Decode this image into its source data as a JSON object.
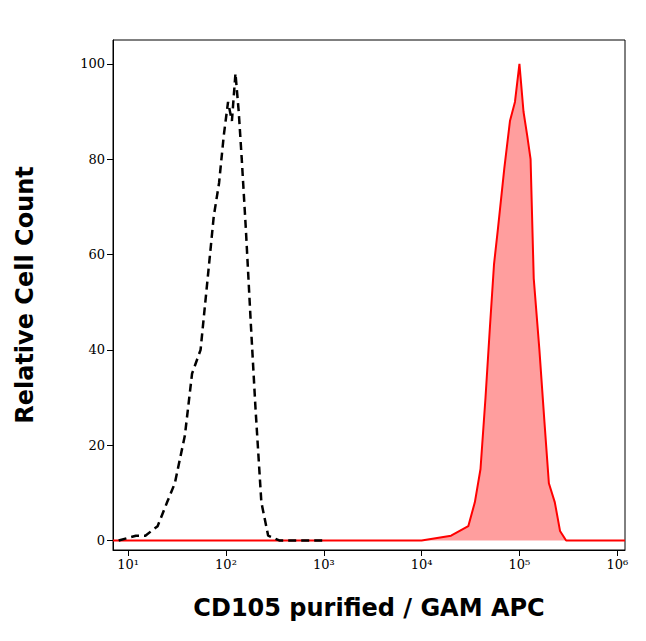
{
  "chart_data": {
    "type": "line",
    "x_label": "CD105 purified / GAM APC",
    "y_label": "Relative Cell Count",
    "log": "x",
    "grid": false,
    "xlim": [
      7,
      1200000
    ],
    "xticks": [
      {
        "value": 10,
        "label": "10¹"
      },
      {
        "value": 100,
        "label": "10²"
      },
      {
        "value": 1000,
        "label": "10³"
      },
      {
        "value": 10000,
        "label": "10⁴"
      },
      {
        "value": 100000,
        "label": "10⁵"
      },
      {
        "value": 1000000,
        "label": "10⁶"
      }
    ],
    "ylim": [
      -2,
      105
    ],
    "yticks": [
      0,
      20,
      40,
      60,
      80,
      100
    ],
    "series": [
      {
        "type": "line",
        "color": "#000000",
        "line_style": "dashed",
        "x": [
          8,
          12,
          15,
          20,
          25,
          30,
          38,
          45,
          55,
          65,
          75,
          85,
          95,
          105,
          115,
          125,
          135,
          145,
          160,
          180,
          200,
          230,
          270,
          350,
          500,
          1000
        ],
        "values": [
          0,
          1,
          1,
          3,
          8,
          12,
          22,
          35,
          40,
          55,
          68,
          75,
          85,
          92,
          88,
          98,
          90,
          80,
          65,
          45,
          28,
          8,
          1,
          0,
          0,
          0
        ]
      },
      {
        "type": "area",
        "color": "#ff0000",
        "line_style": "solid",
        "x": [
          7,
          1000,
          10000,
          20000,
          30000,
          35000,
          40000,
          45000,
          50000,
          55000,
          60000,
          70000,
          80000,
          90000,
          100000,
          110000,
          120000,
          130000,
          140000,
          160000,
          180000,
          200000,
          230000,
          260000,
          300000,
          1200000
        ],
        "values": [
          0,
          0,
          0,
          1,
          3,
          8,
          15,
          30,
          45,
          58,
          65,
          78,
          88,
          92,
          100,
          90,
          85,
          80,
          55,
          40,
          25,
          12,
          8,
          2,
          0,
          0
        ]
      }
    ]
  }
}
